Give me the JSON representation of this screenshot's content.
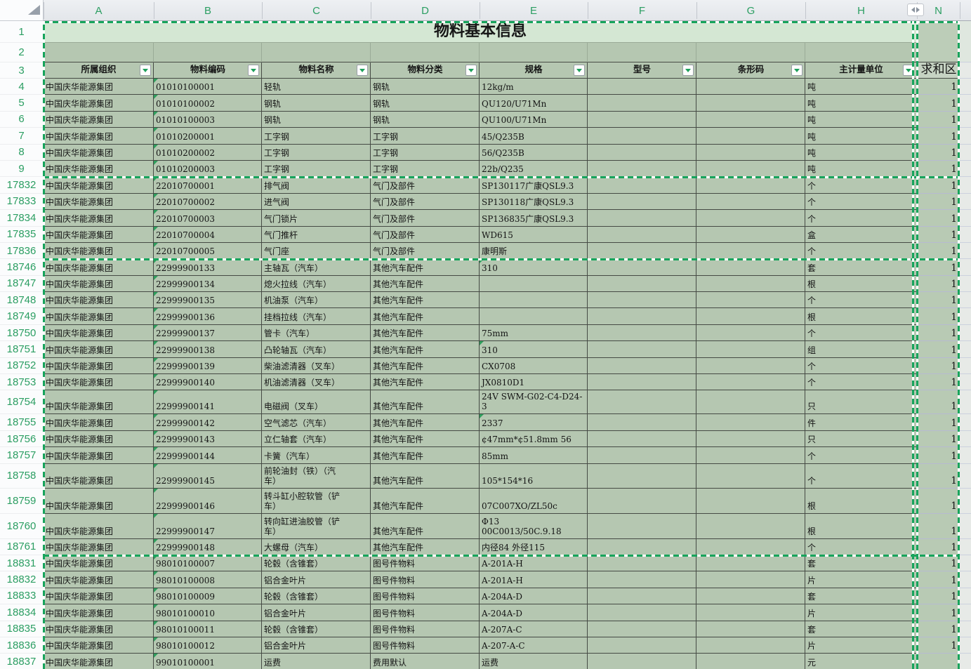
{
  "colors": {
    "selection_green": "#17a45c",
    "header_letter_green": "#2b9e62",
    "title_fill": "#d4e7d3",
    "band_fill": "#b5c7b1",
    "border_dark": "#454a44",
    "n_gridline": "#b6bad1"
  },
  "sheet": {
    "title": "物料基本信息",
    "column_letters": [
      "A",
      "B",
      "C",
      "D",
      "E",
      "F",
      "G",
      "H",
      "N"
    ],
    "headers": [
      "所属组织",
      "物料编码",
      "物料名称",
      "物料分类",
      "规格",
      "型号",
      "条形码",
      "主计量单位"
    ],
    "sum_header": "求和区",
    "chrome_row_numbers": [
      "1",
      "2",
      "3"
    ],
    "rows": [
      {
        "num": "4",
        "org": "中国庆华能源集团",
        "code": "01010100001",
        "name": "轻轨",
        "cat": "钢轨",
        "spec": "12kg/m",
        "model": "",
        "barcode": "",
        "unit": "吨",
        "sum": "1"
      },
      {
        "num": "5",
        "org": "中国庆华能源集团",
        "code": "01010100002",
        "name": "钢轨",
        "cat": "钢轨",
        "spec": "QU120/U71Mn",
        "model": "",
        "barcode": "",
        "unit": "吨",
        "sum": "1"
      },
      {
        "num": "6",
        "org": "中国庆华能源集团",
        "code": "01010100003",
        "name": "钢轨",
        "cat": "钢轨",
        "spec": "QU100/U71Mn",
        "model": "",
        "barcode": "",
        "unit": "吨",
        "sum": "1"
      },
      {
        "num": "7",
        "org": "中国庆华能源集团",
        "code": "01010200001",
        "name": "工字钢",
        "cat": "工字钢",
        "spec": "45/Q235B",
        "model": "",
        "barcode": "",
        "unit": "吨",
        "sum": "1"
      },
      {
        "num": "8",
        "org": "中国庆华能源集团",
        "code": "01010200002",
        "name": "工字钢",
        "cat": "工字钢",
        "spec": "56/Q235B",
        "model": "",
        "barcode": "",
        "unit": "吨",
        "sum": "1"
      },
      {
        "num": "9",
        "org": "中国庆华能源集团",
        "code": "01010200003",
        "name": "工字钢",
        "cat": "工字钢",
        "spec": "22b/Q235",
        "model": "",
        "barcode": "",
        "unit": "吨",
        "sum": "1"
      },
      {
        "num": "17832",
        "block_start": true,
        "org": "中国庆华能源集团",
        "code": "22010700001",
        "name": "排气阀",
        "cat": "气门及部件",
        "spec": "SP130117广康QSL9.3",
        "model": "",
        "barcode": "",
        "unit": "个",
        "sum": "1"
      },
      {
        "num": "17833",
        "org": "中国庆华能源集团",
        "code": "22010700002",
        "name": "进气阀",
        "cat": "气门及部件",
        "spec": "SP130118广康QSL9.3",
        "model": "",
        "barcode": "",
        "unit": "个",
        "sum": "1"
      },
      {
        "num": "17834",
        "org": "中国庆华能源集团",
        "code": "22010700003",
        "name": "气门锁片",
        "cat": "气门及部件",
        "spec": "SP136835广康QSL9.3",
        "model": "",
        "barcode": "",
        "unit": "个",
        "sum": "1"
      },
      {
        "num": "17835",
        "org": "中国庆华能源集团",
        "code": "22010700004",
        "name": "气门推杆",
        "cat": "气门及部件",
        "spec": "WD615",
        "model": "",
        "barcode": "",
        "unit": "盒",
        "sum": "1"
      },
      {
        "num": "17836",
        "org": "中国庆华能源集团",
        "code": "22010700005",
        "name": "气门座",
        "cat": "气门及部件",
        "spec": "康明斯",
        "model": "",
        "barcode": "",
        "unit": "个",
        "sum": "1"
      },
      {
        "num": "18746",
        "block_start": true,
        "org": "中国庆华能源集团",
        "code": "22999900133",
        "name": "主轴瓦（汽车）",
        "cat": "其他汽车配件",
        "spec": "310",
        "spec_error": true,
        "model": "",
        "barcode": "",
        "unit": "套",
        "sum": "1"
      },
      {
        "num": "18747",
        "org": "中国庆华能源集团",
        "code": "22999900134",
        "name": "熄火拉线（汽车）",
        "cat": "其他汽车配件",
        "spec": "",
        "model": "",
        "barcode": "",
        "unit": "根",
        "sum": "1"
      },
      {
        "num": "18748",
        "org": "中国庆华能源集团",
        "code": "22999900135",
        "name": "机油泵（汽车）",
        "cat": "其他汽车配件",
        "spec": "",
        "model": "",
        "barcode": "",
        "unit": "个",
        "sum": "1"
      },
      {
        "num": "18749",
        "org": "中国庆华能源集团",
        "code": "22999900136",
        "name": "挂档拉线（汽车）",
        "cat": "其他汽车配件",
        "spec": "",
        "model": "",
        "barcode": "",
        "unit": "根",
        "sum": "1"
      },
      {
        "num": "18750",
        "org": "中国庆华能源集团",
        "code": "22999900137",
        "name": "管卡（汽车）",
        "cat": "其他汽车配件",
        "spec": "75mm",
        "model": "",
        "barcode": "",
        "unit": "个",
        "sum": "1"
      },
      {
        "num": "18751",
        "org": "中国庆华能源集团",
        "code": "22999900138",
        "name": "凸轮轴瓦（汽车）",
        "cat": "其他汽车配件",
        "spec": "310",
        "spec_error": true,
        "model": "",
        "barcode": "",
        "unit": "组",
        "sum": "1"
      },
      {
        "num": "18752",
        "org": "中国庆华能源集团",
        "code": "22999900139",
        "name": "柴油滤清器（叉车）",
        "cat": "其他汽车配件",
        "spec": "CX0708",
        "model": "",
        "barcode": "",
        "unit": "个",
        "sum": "1"
      },
      {
        "num": "18753",
        "org": "中国庆华能源集团",
        "code": "22999900140",
        "name": "机油滤清器（叉车）",
        "cat": "其他汽车配件",
        "spec": "JX0810D1",
        "model": "",
        "barcode": "",
        "unit": "个",
        "sum": "1"
      },
      {
        "num": "18754",
        "org": "中国庆华能源集团",
        "code": "22999900141",
        "name": "电磁阀（叉车）",
        "cat": "其他汽车配件",
        "spec": "24V SWM-G02-C4-D24-\n3",
        "model": "",
        "barcode": "",
        "unit": "只",
        "sum": "1"
      },
      {
        "num": "18755",
        "org": "中国庆华能源集团",
        "code": "22999900142",
        "name": "空气滤芯（汽车）",
        "cat": "其他汽车配件",
        "spec": "2337",
        "spec_error": true,
        "model": "",
        "barcode": "",
        "unit": "件",
        "sum": "1"
      },
      {
        "num": "18756",
        "org": "中国庆华能源集团",
        "code": "22999900143",
        "name": "立仁轴套（汽车）",
        "cat": "其他汽车配件",
        "spec": "¢47mm*¢51.8mm 56",
        "model": "",
        "barcode": "",
        "unit": "只",
        "sum": "1"
      },
      {
        "num": "18757",
        "org": "中国庆华能源集团",
        "code": "22999900144",
        "name": "卡簧（汽车）",
        "cat": "其他汽车配件",
        "spec": "85mm",
        "model": "",
        "barcode": "",
        "unit": "个",
        "sum": "1"
      },
      {
        "num": "18758",
        "org": "中国庆华能源集团",
        "code": "22999900145",
        "name": "前轮油封（铁）（汽\n车）",
        "cat": "其他汽车配件",
        "spec": "105*154*16",
        "model": "",
        "barcode": "",
        "unit": "个",
        "sum": "1"
      },
      {
        "num": "18759",
        "org": "中国庆华能源集团",
        "code": "22999900146",
        "name": "转斗缸小腔软管（铲\n车）",
        "cat": "其他汽车配件",
        "spec": "07C007XO/ZL50c",
        "model": "",
        "barcode": "",
        "unit": "根",
        "sum": "1"
      },
      {
        "num": "18760",
        "org": "中国庆华能源集团",
        "code": "22999900147",
        "name": "转向缸进油胶管（铲\n车）",
        "cat": "其他汽车配件",
        "spec": "Φ13\n00C0013/50C.9.18",
        "model": "",
        "barcode": "",
        "unit": "根",
        "sum": "1"
      },
      {
        "num": "18761",
        "org": "中国庆华能源集团",
        "code": "22999900148",
        "name": "大螺母（汽车）",
        "cat": "其他汽车配件",
        "spec": "内径84 外径115",
        "model": "",
        "barcode": "",
        "unit": "个",
        "sum": "1"
      },
      {
        "num": "18831",
        "block_start": true,
        "org": "中国庆华能源集团",
        "code": "98010100007",
        "name": "轮毂（含锥套）",
        "cat": "图号件物料",
        "spec": "A-201A-H",
        "model": "",
        "barcode": "",
        "unit": "套",
        "sum": "1"
      },
      {
        "num": "18832",
        "org": "中国庆华能源集团",
        "code": "98010100008",
        "name": "铝合金叶片",
        "cat": "图号件物料",
        "spec": "A-201A-H",
        "model": "",
        "barcode": "",
        "unit": "片",
        "sum": "1"
      },
      {
        "num": "18833",
        "org": "中国庆华能源集团",
        "code": "98010100009",
        "name": "轮毂（含锥套）",
        "cat": "图号件物料",
        "spec": "A-204A-D",
        "model": "",
        "barcode": "",
        "unit": "套",
        "sum": "1"
      },
      {
        "num": "18834",
        "org": "中国庆华能源集团",
        "code": "98010100010",
        "name": "铝合金叶片",
        "cat": "图号件物料",
        "spec": "A-204A-D",
        "model": "",
        "barcode": "",
        "unit": "片",
        "sum": "1"
      },
      {
        "num": "18835",
        "org": "中国庆华能源集团",
        "code": "98010100011",
        "name": "轮毂（含锥套）",
        "cat": "图号件物料",
        "spec": "A-207A-C",
        "model": "",
        "barcode": "",
        "unit": "套",
        "sum": "1"
      },
      {
        "num": "18836",
        "org": "中国庆华能源集团",
        "code": "98010100012",
        "name": "铝合金叶片",
        "cat": "图号件物料",
        "spec": "A-207-A-C",
        "model": "",
        "barcode": "",
        "unit": "片",
        "sum": "1"
      },
      {
        "num": "18837",
        "org": "中国庆华能源集团",
        "code": "99010100001",
        "name": "运费",
        "cat": "费用默认",
        "spec": "运费",
        "model": "",
        "barcode": "",
        "unit": "元",
        "sum": ""
      }
    ]
  }
}
